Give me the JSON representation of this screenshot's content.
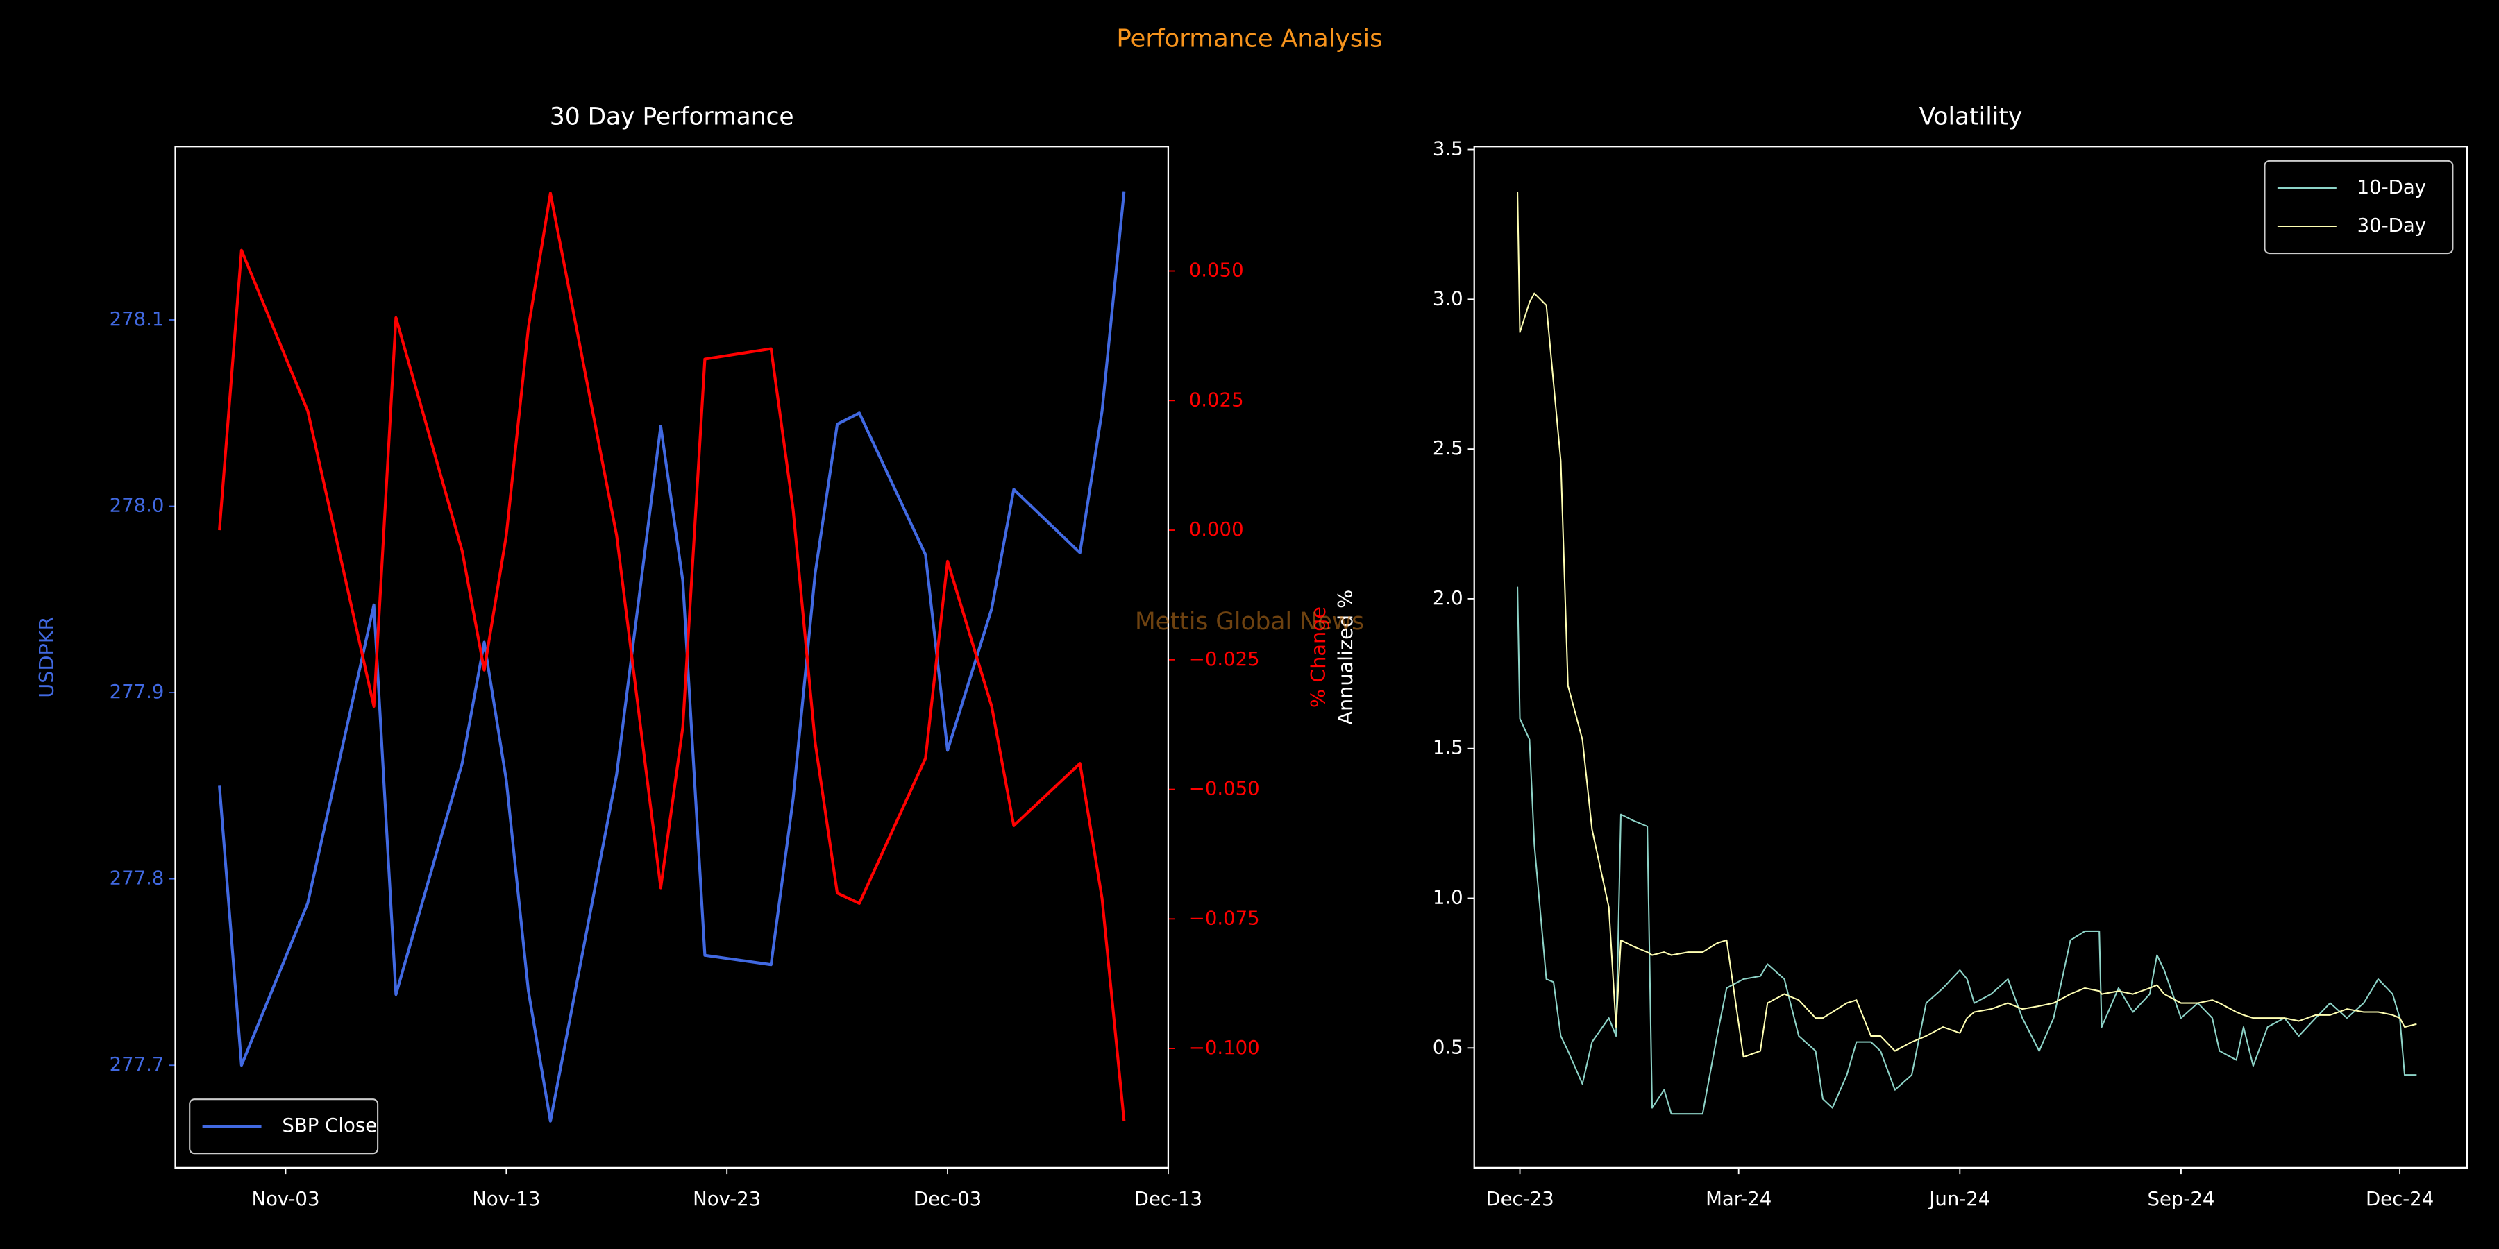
{
  "title": "Performance Analysis",
  "watermark": "Mettis Global News",
  "chart_data": [
    {
      "type": "line",
      "title": "30 Day Performance",
      "x": [
        "10-31",
        "11-01",
        "11-04",
        "11-07",
        "11-08",
        "11-11",
        "11-12",
        "11-13",
        "11-14",
        "11-15",
        "11-18",
        "11-20",
        "11-21",
        "11-22",
        "11-25",
        "11-26",
        "11-27",
        "11-28",
        "11-29",
        "12-02",
        "12-03",
        "12-05",
        "12-06",
        "12-09",
        "12-10",
        "12-11"
      ],
      "xlim": [
        "10-29",
        "12-13"
      ],
      "xticks": [
        {
          "value": "11-03",
          "label": "Nov-03"
        },
        {
          "value": "11-13",
          "label": "Nov-13"
        },
        {
          "value": "11-23",
          "label": "Nov-23"
        },
        {
          "value": "12-03",
          "label": "Dec-03"
        },
        {
          "value": "12-13",
          "label": "Dec-13"
        }
      ],
      "ylabel": "USDPKR",
      "ylim": [
        277.645,
        278.193
      ],
      "yticks": [
        277.7,
        277.8,
        277.9,
        {
          "value": 278.0,
          "label": "278.0"
        },
        278.1
      ],
      "y2label": "% Change",
      "y2lim": [
        -0.123,
        0.074
      ],
      "y2ticks": [
        {
          "value": -0.1,
          "label": "−0.100"
        },
        {
          "value": -0.075,
          "label": "−0.075"
        },
        {
          "value": -0.05,
          "label": "−0.050"
        },
        {
          "value": -0.025,
          "label": "−0.025"
        },
        {
          "value": 0,
          "label": "0.000"
        },
        {
          "value": 0.025,
          "label": "0.025"
        },
        {
          "value": 0.05,
          "label": "0.050"
        }
      ],
      "legend": "lower left",
      "series": [
        {
          "name": "SBP Close",
          "color": "#4169e1",
          "values": [
            277.85,
            277.7,
            277.787,
            277.947,
            277.738,
            277.862,
            277.927,
            277.853,
            277.74,
            277.67,
            277.856,
            278.043,
            277.96,
            277.759,
            277.754,
            277.843,
            277.964,
            278.044,
            278.05,
            277.974,
            277.869,
            277.945,
            278.009,
            277.975,
            278.051,
            278.169
          ]
        },
        {
          "color": "#ff0000",
          "axis": "y2",
          "values": [
            0.0,
            0.054,
            0.023,
            -0.034,
            0.041,
            -0.004,
            -0.027,
            -0.001,
            0.039,
            0.065,
            -0.001,
            -0.069,
            -0.038,
            0.033,
            0.035,
            0.004,
            -0.041,
            -0.07,
            -0.072,
            -0.044,
            -0.006,
            -0.034,
            -0.057,
            -0.045,
            -0.071,
            -0.114
          ]
        }
      ]
    },
    {
      "type": "line",
      "title": "Volatility",
      "x": [
        "2023-11-30",
        "2023-12-01",
        "2023-12-05",
        "2023-12-07",
        "2023-12-12",
        "2023-12-15",
        "2023-12-18",
        "2023-12-21",
        "2023-12-27",
        "2023-12-31",
        "2024-01-07",
        "2024-01-10",
        "2024-01-12",
        "2024-01-17",
        "2024-01-23",
        "2024-01-25",
        "2024-01-30",
        "2024-02-02",
        "2024-02-09",
        "2024-02-15",
        "2024-02-21",
        "2024-02-25",
        "2024-03-03",
        "2024-03-10",
        "2024-03-13",
        "2024-03-20",
        "2024-03-26",
        "2024-04-02",
        "2024-04-05",
        "2024-04-09",
        "2024-04-15",
        "2024-04-19",
        "2024-04-25",
        "2024-04-29",
        "2024-05-05",
        "2024-05-12",
        "2024-05-18",
        "2024-05-25",
        "2024-06-01",
        "2024-06-04",
        "2024-06-07",
        "2024-06-14",
        "2024-06-21",
        "2024-06-27",
        "2024-07-04",
        "2024-07-10",
        "2024-07-17",
        "2024-07-23",
        "2024-07-29",
        "2024-07-30",
        "2024-08-06",
        "2024-08-12",
        "2024-08-19",
        "2024-08-22",
        "2024-08-25",
        "2024-09-01",
        "2024-09-08",
        "2024-09-14",
        "2024-09-17",
        "2024-09-24",
        "2024-09-27",
        "2024-10-01",
        "2024-10-07",
        "2024-10-14",
        "2024-10-20",
        "2024-10-27",
        "2024-11-02",
        "2024-11-09",
        "2024-11-16",
        "2024-11-22",
        "2024-11-28",
        "2024-12-01",
        "2024-12-03",
        "2024-12-08"
      ],
      "xlim": [
        "2023-11-12",
        "2024-12-29"
      ],
      "xticks": [
        {
          "value": "2023-12",
          "label": "Dec-23"
        },
        {
          "value": "2024-03",
          "label": "Mar-24"
        },
        {
          "value": "2024-06",
          "label": "Jun-24"
        },
        {
          "value": "2024-09",
          "label": "Sep-24"
        },
        {
          "value": "2024-12",
          "label": "Dec-24"
        }
      ],
      "ylabel": "Annualized %",
      "ylim": [
        0.1,
        3.51
      ],
      "yticks": [
        0.5,
        {
          "value": 1,
          "label": "1.0"
        },
        1.5,
        {
          "value": 2,
          "label": "2.0"
        },
        2.5,
        {
          "value": 3,
          "label": "3.0"
        },
        3.5
      ],
      "legend": "upper right",
      "series": [
        {
          "name": "10-Day",
          "color": "#8dd3c7",
          "values": [
            2.04,
            1.6,
            1.53,
            1.18,
            0.73,
            0.72,
            0.54,
            0.49,
            0.38,
            0.52,
            0.6,
            0.54,
            1.28,
            1.26,
            1.24,
            0.3,
            0.36,
            0.28,
            0.28,
            0.28,
            0.54,
            0.7,
            0.73,
            0.74,
            0.78,
            0.73,
            0.54,
            0.49,
            0.33,
            0.3,
            0.41,
            0.52,
            0.52,
            0.49,
            0.36,
            0.41,
            0.65,
            0.7,
            0.76,
            0.73,
            0.65,
            0.68,
            0.73,
            0.6,
            0.49,
            0.6,
            0.86,
            0.89,
            0.89,
            0.57,
            0.7,
            0.62,
            0.68,
            0.81,
            0.76,
            0.6,
            0.65,
            0.6,
            0.49,
            0.46,
            0.57,
            0.44,
            0.57,
            0.6,
            0.54,
            0.6,
            0.65,
            0.6,
            0.65,
            0.73,
            0.68,
            0.6,
            0.41,
            0.41
          ]
        },
        {
          "name": "30-Day",
          "color": "#ffffb3",
          "values": [
            3.36,
            2.89,
            2.99,
            3.02,
            2.98,
            2.72,
            2.46,
            1.71,
            1.53,
            1.23,
            0.97,
            0.57,
            0.86,
            0.84,
            0.82,
            0.81,
            0.82,
            0.81,
            0.82,
            0.82,
            0.85,
            0.86,
            0.47,
            0.49,
            0.65,
            0.68,
            0.66,
            0.6,
            0.6,
            0.62,
            0.65,
            0.66,
            0.54,
            0.54,
            0.49,
            0.52,
            0.54,
            0.57,
            0.55,
            0.6,
            0.62,
            0.63,
            0.65,
            0.63,
            0.64,
            0.65,
            0.68,
            0.7,
            0.69,
            0.68,
            0.69,
            0.68,
            0.7,
            0.71,
            0.68,
            0.65,
            0.65,
            0.66,
            0.65,
            0.62,
            0.61,
            0.6,
            0.6,
            0.6,
            0.59,
            0.61,
            0.61,
            0.63,
            0.62,
            0.62,
            0.61,
            0.6,
            0.57,
            0.58
          ]
        }
      ]
    }
  ]
}
